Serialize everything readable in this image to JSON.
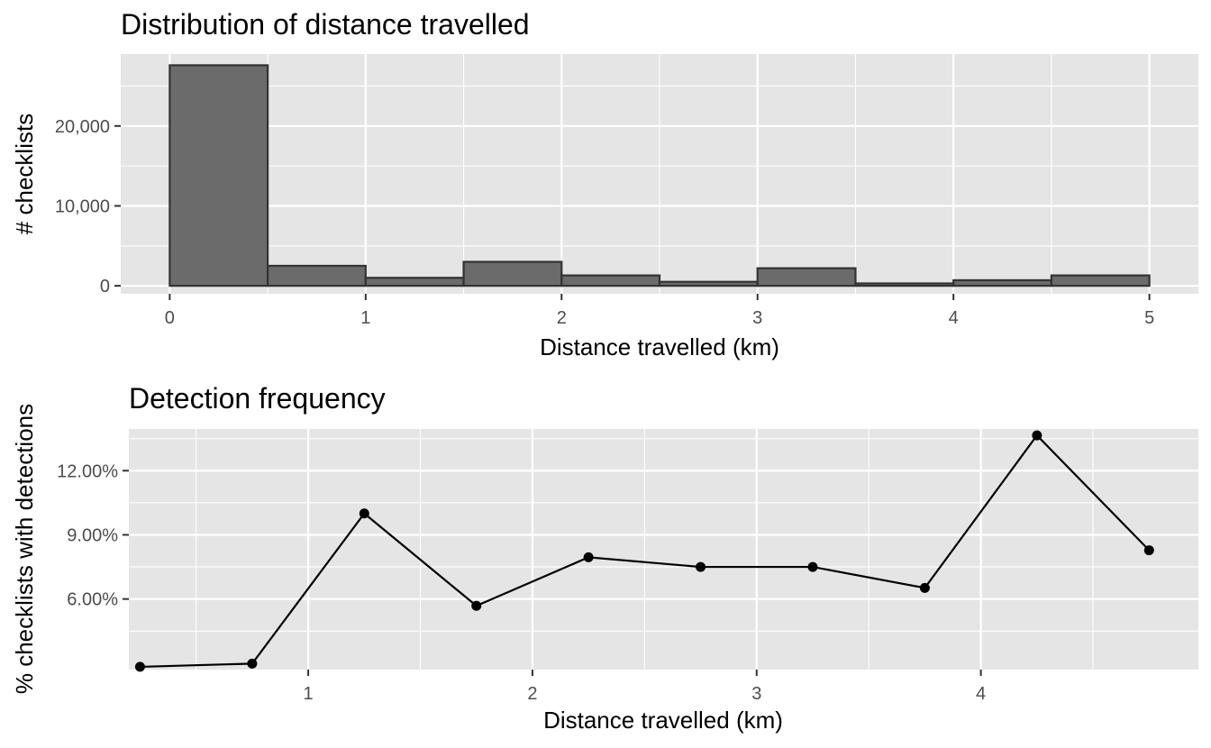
{
  "chart_data": [
    {
      "type": "bar",
      "title": "Distribution of distance travelled",
      "xlabel": "Distance travelled (km)",
      "ylabel": "# checklists",
      "xlim": [
        -0.25,
        5.25
      ],
      "ylim": [
        -1000,
        29000
      ],
      "x_ticks": [
        0,
        1,
        2,
        3,
        4,
        5
      ],
      "x_tick_labels": [
        "0",
        "1",
        "2",
        "3",
        "4",
        "5"
      ],
      "y_ticks": [
        0,
        10000,
        20000
      ],
      "y_tick_labels": [
        "0",
        "10,000",
        "20,000"
      ],
      "bin_edges": [
        0,
        0.5,
        1,
        1.5,
        2,
        2.5,
        3,
        3.5,
        4,
        4.5,
        5
      ],
      "values": [
        27600,
        2500,
        1000,
        3000,
        1300,
        500,
        2200,
        300,
        700,
        1300
      ],
      "grid": true
    },
    {
      "type": "line",
      "title": "Detection frequency",
      "xlabel": "Distance travelled (km)",
      "ylabel": "% checklists with detections",
      "xlim": [
        0.2,
        4.97
      ],
      "ylim": [
        0.027,
        0.1395
      ],
      "x_ticks": [
        1,
        2,
        3,
        4
      ],
      "x_tick_labels": [
        "1",
        "2",
        "3",
        "4"
      ],
      "y_ticks": [
        0.06,
        0.09,
        0.12
      ],
      "y_tick_labels": [
        "6.00%",
        "9.00%",
        "12.00%"
      ],
      "x": [
        0.25,
        0.75,
        1.25,
        1.75,
        2.25,
        2.75,
        3.25,
        3.75,
        4.25,
        4.75
      ],
      "y": [
        0.0283,
        0.0298,
        0.1,
        0.0568,
        0.0795,
        0.075,
        0.075,
        0.0652,
        0.1365,
        0.0828
      ],
      "markers": true,
      "grid": true
    }
  ]
}
